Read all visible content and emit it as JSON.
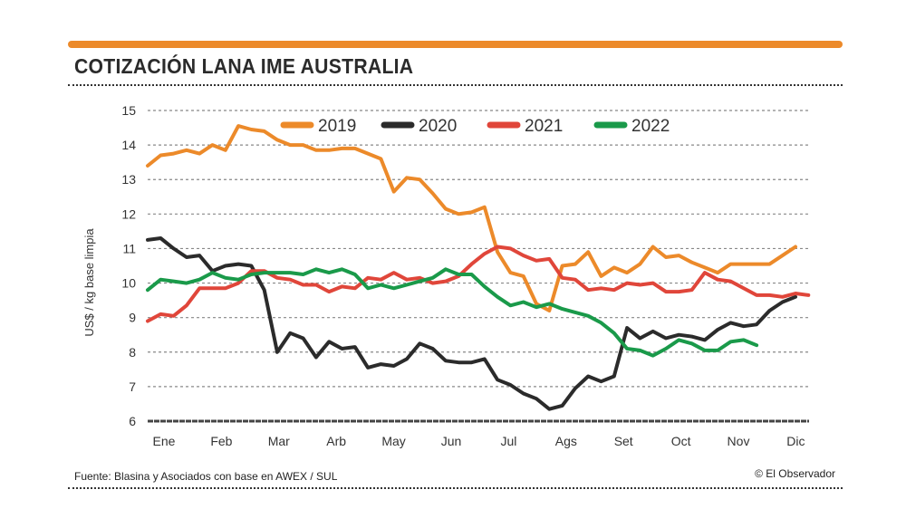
{
  "title": "COTIZACIÓN LANA IME AUSTRALIA",
  "source": "Fuente: Blasina y Asociados con base en AWEX / SUL",
  "credit": "© El Observador",
  "chart_data": {
    "type": "line",
    "title": "COTIZACIÓN LANA IME AUSTRALIA",
    "ylabel": "US$ / kg base limpia",
    "xlabel": "",
    "x_unit": "week of year",
    "ylim": [
      6,
      15
    ],
    "yticks": [
      6,
      7,
      8,
      9,
      10,
      11,
      12,
      13,
      14,
      15
    ],
    "xticks": [
      "Ene",
      "Feb",
      "Mar",
      "Arb",
      "May",
      "Jun",
      "Jul",
      "Ags",
      "Set",
      "Oct",
      "Nov",
      "Dic"
    ],
    "grid": true,
    "legend": "top",
    "series": [
      {
        "name": "2019",
        "color": "#ec8a2a",
        "values": [
          13.4,
          13.7,
          13.75,
          13.85,
          13.75,
          14.0,
          13.85,
          14.55,
          14.45,
          14.4,
          14.15,
          14.0,
          14.0,
          13.85,
          13.85,
          13.9,
          13.9,
          13.75,
          13.6,
          12.65,
          13.05,
          13.0,
          12.6,
          12.15,
          12.0,
          12.05,
          12.2,
          10.9,
          10.3,
          10.2,
          9.4,
          9.2,
          10.5,
          10.55,
          10.9,
          10.2,
          10.45,
          10.3,
          10.55,
          11.05,
          10.75,
          10.8,
          10.6,
          10.45,
          10.3,
          10.55,
          10.55,
          10.55,
          10.55,
          10.8,
          11.05
        ]
      },
      {
        "name": "2020",
        "color": "#2b2b2b",
        "values": [
          11.25,
          11.3,
          11.0,
          10.75,
          10.8,
          10.35,
          10.5,
          10.55,
          10.5,
          9.8,
          8.0,
          8.55,
          8.4,
          7.85,
          8.3,
          8.1,
          8.15,
          7.55,
          7.65,
          7.6,
          7.8,
          8.25,
          8.1,
          7.75,
          7.7,
          7.7,
          7.8,
          7.2,
          7.05,
          6.8,
          6.65,
          6.35,
          6.45,
          6.95,
          7.3,
          7.15,
          7.3,
          8.7,
          8.4,
          8.6,
          8.4,
          8.5,
          8.45,
          8.35,
          8.65,
          8.85,
          8.75,
          8.8,
          9.2,
          9.45,
          9.6
        ]
      },
      {
        "name": "2021",
        "color": "#e0463a",
        "values": [
          8.9,
          9.1,
          9.05,
          9.35,
          9.85,
          9.85,
          9.85,
          10.0,
          10.35,
          10.35,
          10.15,
          10.1,
          9.95,
          9.95,
          9.75,
          9.9,
          9.85,
          10.15,
          10.1,
          10.3,
          10.1,
          10.15,
          10.0,
          10.05,
          10.2,
          10.55,
          10.85,
          11.05,
          11.0,
          10.8,
          10.65,
          10.7,
          10.15,
          10.1,
          9.8,
          9.85,
          9.8,
          10.0,
          9.95,
          10.0,
          9.75,
          9.75,
          9.8,
          10.3,
          10.1,
          10.05,
          9.85,
          9.65,
          9.65,
          9.6,
          9.7,
          9.65
        ]
      },
      {
        "name": "2022",
        "color": "#1a9a4a",
        "values": [
          9.8,
          10.1,
          10.05,
          10.0,
          10.1,
          10.3,
          10.15,
          10.1,
          10.25,
          10.3,
          10.3,
          10.3,
          10.25,
          10.4,
          10.3,
          10.4,
          10.25,
          9.85,
          9.95,
          9.85,
          9.95,
          10.05,
          10.15,
          10.4,
          10.25,
          10.25,
          9.9,
          9.6,
          9.35,
          9.45,
          9.3,
          9.4,
          9.25,
          9.15,
          9.05,
          8.85,
          8.55,
          8.1,
          8.05,
          7.9,
          8.1,
          8.35,
          8.25,
          8.05,
          8.05,
          8.3,
          8.35,
          8.2
        ]
      }
    ]
  }
}
